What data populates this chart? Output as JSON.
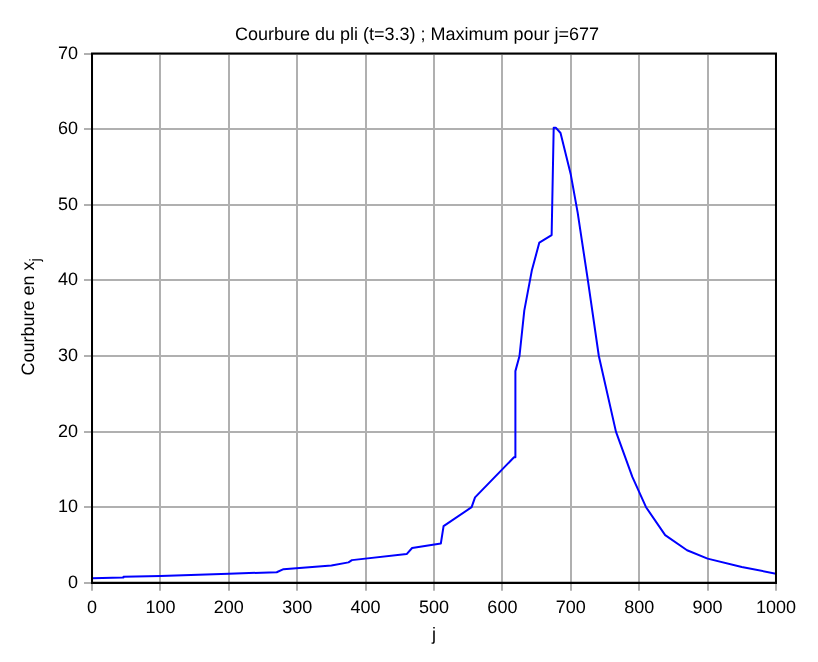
{
  "chart_data": {
    "type": "line",
    "title": "Courbure du pli (t=3.3) ; Maximum pour j=677",
    "xlabel": "j",
    "ylabel": "Courbure en x$_{j}$",
    "x": [
      0,
      45,
      46,
      100,
      200,
      270,
      280,
      350,
      375,
      380,
      460,
      468,
      510,
      514,
      555,
      560,
      617,
      619,
      625,
      632,
      643,
      654,
      672,
      675,
      678,
      685,
      700,
      710,
      725,
      741,
      766,
      790,
      810,
      838,
      870,
      900,
      950,
      1000
    ],
    "series": [
      {
        "color": "#0000ff",
        "values": [
          0.6,
          0.7,
          0.8,
          0.9,
          1.2,
          1.4,
          1.8,
          2.3,
          2.7,
          3.0,
          3.8,
          4.6,
          5.2,
          7.5,
          10,
          11.3,
          16.6,
          28,
          30,
          36,
          41.3,
          45,
          46,
          60.2,
          60.2,
          59.5,
          54,
          49,
          40,
          30,
          20,
          14,
          10,
          6.3,
          4.3,
          3.2,
          2.1,
          1.2
        ]
      }
    ],
    "xlim": [
      0,
      1000
    ],
    "xticks": [
      0,
      100,
      200,
      300,
      400,
      500,
      600,
      700,
      800,
      900,
      1000
    ],
    "ylim": [
      0,
      70
    ],
    "yticks": [
      0,
      10,
      20,
      30,
      40,
      50,
      60,
      70
    ],
    "grid": true,
    "marker": "none",
    "line_style": "solid"
  }
}
